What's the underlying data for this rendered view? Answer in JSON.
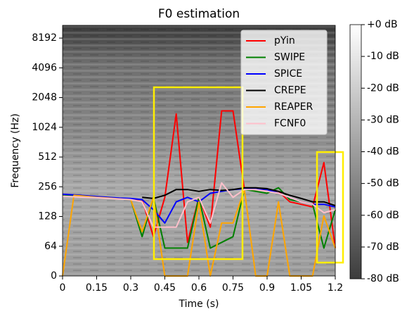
{
  "chart_data": {
    "type": "line",
    "title": "F0 estimation",
    "x_label": "Time (s)",
    "y_label": "Frequency (Hz)",
    "yscale": "symlog",
    "linthresh": 64,
    "xlim": [
      0,
      1.2
    ],
    "xticks": [
      0,
      0.15,
      0.3,
      0.45,
      0.6,
      0.75,
      0.9,
      1.05,
      1.2
    ],
    "ylim": [
      0,
      11025
    ],
    "yticks": [
      0,
      64,
      128,
      256,
      512,
      1024,
      2048,
      4096,
      8192
    ],
    "legend": "upper right",
    "x": [
      0,
      0.05,
      0.1,
      0.15,
      0.2,
      0.25,
      0.3,
      0.35,
      0.4,
      0.45,
      0.5,
      0.55,
      0.6,
      0.65,
      0.7,
      0.75,
      0.8,
      0.85,
      0.9,
      0.95,
      1.0,
      1.05,
      1.1,
      1.15,
      1.2
    ],
    "series": [
      {
        "name": "pYin",
        "color": "red",
        "values": [
          215,
          210,
          205,
          200,
          198,
          195,
          190,
          190,
          80,
          200,
          1400,
          70,
          200,
          100,
          1500,
          1500,
          240,
          240,
          240,
          230,
          180,
          170,
          160,
          450,
          60
        ]
      },
      {
        "name": "SWIPE",
        "color": "green",
        "values": [
          210,
          207,
          203,
          200,
          197,
          193,
          190,
          80,
          200,
          60,
          60,
          60,
          200,
          60,
          70,
          80,
          240,
          230,
          220,
          250,
          190,
          180,
          170,
          60,
          150
        ]
      },
      {
        "name": "SPICE",
        "color": "blue",
        "values": [
          215,
          212,
          208,
          204,
          200,
          197,
          195,
          190,
          150,
          110,
          180,
          200,
          180,
          220,
          230,
          240,
          245,
          245,
          240,
          220,
          200,
          180,
          170,
          170,
          160
        ]
      },
      {
        "name": "CREPE",
        "color": "black",
        "values": [
          null,
          null,
          null,
          null,
          null,
          null,
          null,
          200,
          195,
          210,
          240,
          240,
          230,
          240,
          235,
          240,
          250,
          250,
          245,
          230,
          210,
          195,
          180,
          180,
          165
        ]
      },
      {
        "name": "REAPER",
        "color": "orange",
        "values": [
          0,
          210,
          205,
          200,
          197,
          193,
          190,
          90,
          200,
          0,
          0,
          0,
          180,
          0,
          110,
          110,
          240,
          0,
          0,
          180,
          0,
          0,
          0,
          130,
          60
        ]
      },
      {
        "name": "FCNF0",
        "color": "pink",
        "values": [
          205,
          203,
          200,
          198,
          195,
          192,
          190,
          180,
          100,
          100,
          100,
          180,
          200,
          110,
          280,
          200,
          240,
          240,
          230,
          220,
          200,
          180,
          170,
          140,
          150
        ]
      }
    ],
    "colorbar": {
      "lim": [
        -80,
        0
      ],
      "ticks": [
        {
          "value": 0,
          "label": "+0 dB"
        },
        {
          "value": -10,
          "label": "-10 dB"
        },
        {
          "value": -20,
          "label": "-20 dB"
        },
        {
          "value": -30,
          "label": "-30 dB"
        },
        {
          "value": -40,
          "label": "-40 dB"
        },
        {
          "value": -50,
          "label": "-50 dB"
        },
        {
          "value": -60,
          "label": "-60 dB"
        },
        {
          "value": -70,
          "label": "-70 dB"
        },
        {
          "value": -80,
          "label": "-80 dB"
        }
      ]
    }
  }
}
